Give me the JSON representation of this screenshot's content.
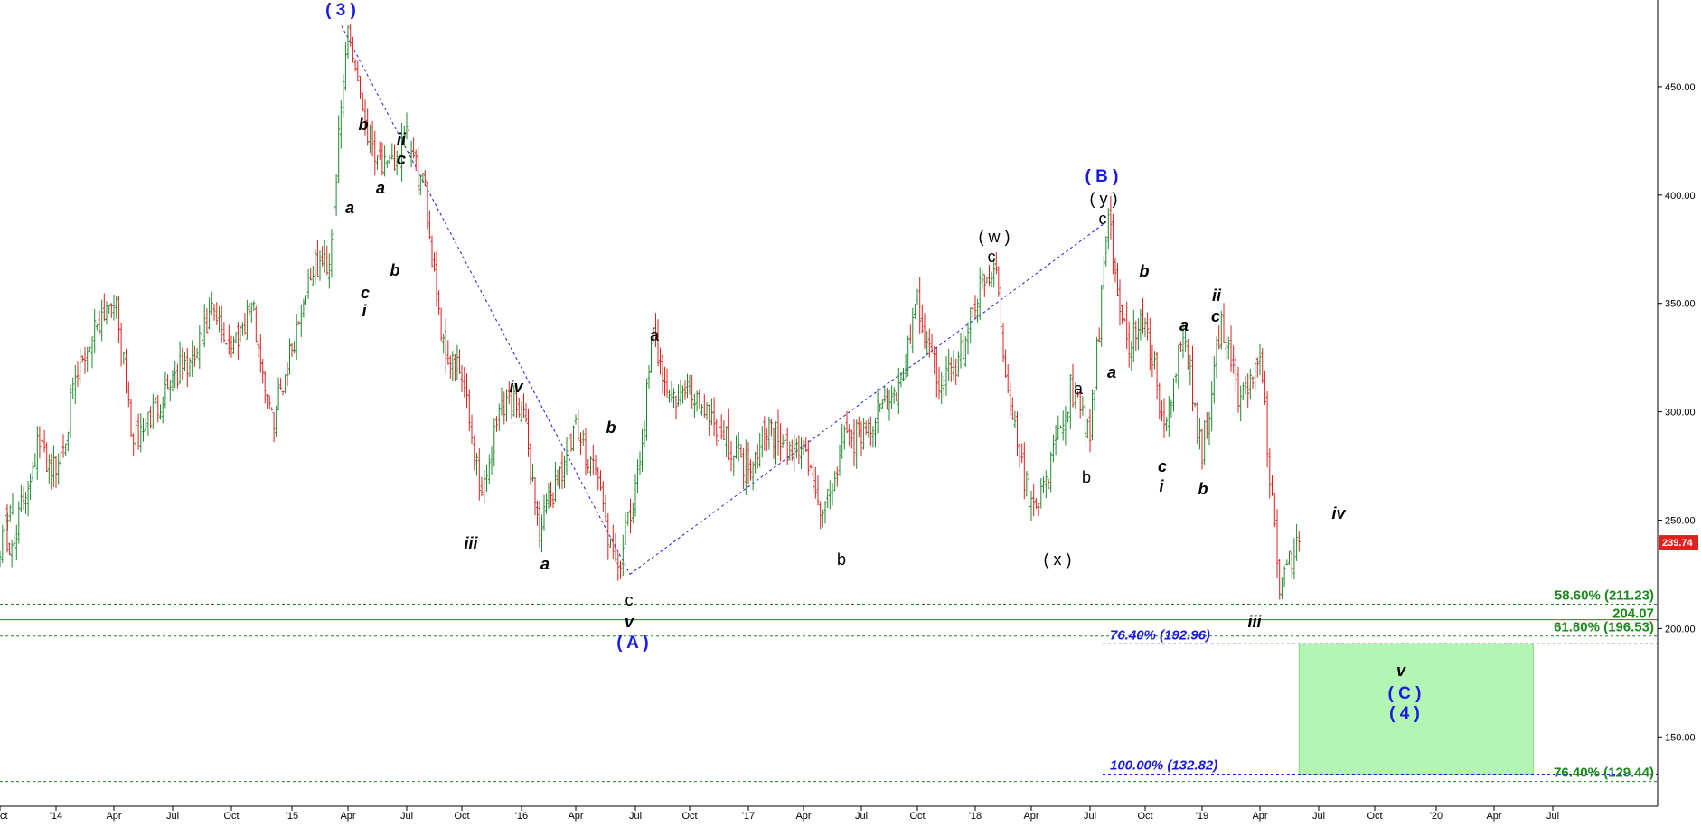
{
  "chart_data": {
    "type": "candlestick",
    "title": "",
    "xlabel": "",
    "ylabel": "",
    "ylim": [
      118,
      490
    ],
    "y_ticks": [
      "150.00",
      "200.00",
      "250.00",
      "300.00",
      "350.00",
      "400.00",
      "450.00"
    ],
    "x_ticks": [
      "ct",
      "'14",
      "Apr",
      "Jul",
      "Oct",
      "'15",
      "Apr",
      "Jul",
      "Oct",
      "'16",
      "Apr",
      "Jul",
      "Oct",
      "'17",
      "Apr",
      "Jul",
      "Oct",
      "'18",
      "Apr",
      "Jul",
      "Oct",
      "'19",
      "Apr",
      "Jul",
      "Oct",
      "'20",
      "Apr",
      "Jul"
    ],
    "last_price": "239.74",
    "colors": {
      "up": "#1e8a2e",
      "down": "#e0201d",
      "wave_blue": "#1a1ae6",
      "fib_green": "#1a8a1a",
      "fib_blue": "#1a1ae6",
      "target_box": "#b3f5b3",
      "price_tag": "#e0201d"
    },
    "price_path": [
      [
        "2013-10",
        240
      ],
      [
        "2013-10",
        262
      ],
      [
        "2013-11",
        230
      ],
      [
        "2013-12",
        285
      ],
      [
        "2014-01",
        272
      ],
      [
        "2014-02",
        312
      ],
      [
        "2014-03",
        340
      ],
      [
        "2014-04",
        355
      ],
      [
        "2014-05",
        285
      ],
      [
        "2014-06",
        300
      ],
      [
        "2014-07",
        317
      ],
      [
        "2014-08",
        322
      ],
      [
        "2014-09",
        345
      ],
      [
        "2014-10",
        330
      ],
      [
        "2014-11",
        350
      ],
      [
        "2014-12",
        295
      ],
      [
        "2015-01",
        330
      ],
      [
        "2015-02",
        365
      ],
      [
        "2015-03",
        370
      ],
      [
        "2015-04",
        478
      ],
      [
        "2015-05",
        430
      ],
      [
        "2015-06",
        410
      ],
      [
        "2015-07",
        425
      ],
      [
        "2015-08",
        400
      ],
      [
        "2015-09",
        330
      ],
      [
        "2015-10",
        315
      ],
      [
        "2015-11",
        262
      ],
      [
        "2015-12",
        305
      ],
      [
        "2016-01",
        305
      ],
      [
        "2016-02",
        245
      ],
      [
        "2016-03",
        270
      ],
      [
        "2016-04",
        290
      ],
      [
        "2016-05",
        275
      ],
      [
        "2016-06",
        225
      ],
      [
        "2016-07",
        260
      ],
      [
        "2016-08",
        335
      ],
      [
        "2016-09",
        305
      ],
      [
        "2016-10",
        310
      ],
      [
        "2016-11",
        300
      ],
      [
        "2016-12",
        285
      ],
      [
        "2017-01",
        275
      ],
      [
        "2017-02",
        295
      ],
      [
        "2017-03",
        280
      ],
      [
        "2017-04",
        285
      ],
      [
        "2017-05",
        250
      ],
      [
        "2017-06",
        285
      ],
      [
        "2017-07",
        290
      ],
      [
        "2017-08",
        300
      ],
      [
        "2017-09",
        310
      ],
      [
        "2017-10",
        348
      ],
      [
        "2017-11",
        315
      ],
      [
        "2017-12",
        320
      ],
      [
        "2018-01",
        350
      ],
      [
        "2018-02",
        370
      ],
      [
        "2018-03",
        295
      ],
      [
        "2018-04",
        255
      ],
      [
        "2018-05",
        275
      ],
      [
        "2018-06",
        310
      ],
      [
        "2018-07",
        290
      ],
      [
        "2018-08",
        387
      ],
      [
        "2018-09",
        330
      ],
      [
        "2018-10",
        345
      ],
      [
        "2018-11",
        290
      ],
      [
        "2018-12",
        335
      ],
      [
        "2019-01",
        280
      ],
      [
        "2019-02",
        340
      ],
      [
        "2019-03",
        305
      ],
      [
        "2019-04",
        325
      ],
      [
        "2019-05",
        218
      ],
      [
        "2019-06",
        240
      ]
    ],
    "annotations": [
      {
        "text": "( 3 )",
        "style": "blue"
      },
      {
        "text": "b",
        "style": "italic"
      },
      {
        "text": "ii",
        "style": "italic"
      },
      {
        "text": "c",
        "style": "italic"
      },
      {
        "text": "a",
        "style": "italic"
      },
      {
        "text": "a",
        "style": "italic"
      },
      {
        "text": "b",
        "style": "italic"
      },
      {
        "text": "c",
        "style": "italic"
      },
      {
        "text": "i",
        "style": "italic"
      },
      {
        "text": "iv",
        "style": "italic"
      },
      {
        "text": "iii",
        "style": "italic"
      },
      {
        "text": "a",
        "style": "italic"
      },
      {
        "text": "b",
        "style": "italic"
      },
      {
        "text": "c",
        "style": "black"
      },
      {
        "text": "v",
        "style": "italic"
      },
      {
        "text": "( A )",
        "style": "blue"
      },
      {
        "text": "a",
        "style": "black"
      },
      {
        "text": "b",
        "style": "black"
      },
      {
        "text": "( w )",
        "style": "black"
      },
      {
        "text": "c",
        "style": "black"
      },
      {
        "text": "( x )",
        "style": "black"
      },
      {
        "text": "a",
        "style": "black"
      },
      {
        "text": "b",
        "style": "black"
      },
      {
        "text": "( B )",
        "style": "blue"
      },
      {
        "text": "( y )",
        "style": "black"
      },
      {
        "text": "c",
        "style": "black"
      },
      {
        "text": "a",
        "style": "italic"
      },
      {
        "text": "b",
        "style": "italic"
      },
      {
        "text": "a",
        "style": "italic"
      },
      {
        "text": "c",
        "style": "italic"
      },
      {
        "text": "i",
        "style": "italic"
      },
      {
        "text": "ii",
        "style": "italic"
      },
      {
        "text": "c",
        "style": "italic"
      },
      {
        "text": "b",
        "style": "italic"
      },
      {
        "text": "iii",
        "style": "italic"
      },
      {
        "text": "iv",
        "style": "italic"
      },
      {
        "text": "v",
        "style": "italic"
      },
      {
        "text": "( C )",
        "style": "blue"
      },
      {
        "text": "( 4 )",
        "style": "blue"
      }
    ],
    "fib_levels": [
      {
        "label": "58.60% (211.23)",
        "value": 211.23,
        "color": "green",
        "dash": true
      },
      {
        "label": "204.07",
        "value": 204.07,
        "color": "green",
        "dash": false
      },
      {
        "label": "61.80% (196.53)",
        "value": 196.53,
        "color": "green",
        "dash": true
      },
      {
        "label": "76.40% (192.96)",
        "value": 192.96,
        "color": "blue",
        "dash": true
      },
      {
        "label": "100.00% (132.82)",
        "value": 132.82,
        "color": "blue",
        "dash": true
      },
      {
        "label": "76.40% (129.44)",
        "value": 129.44,
        "color": "green",
        "dash": true
      }
    ],
    "target_zone": {
      "from": "2019-06",
      "to": "2020-06",
      "low": 132.82,
      "high": 192.96
    }
  }
}
